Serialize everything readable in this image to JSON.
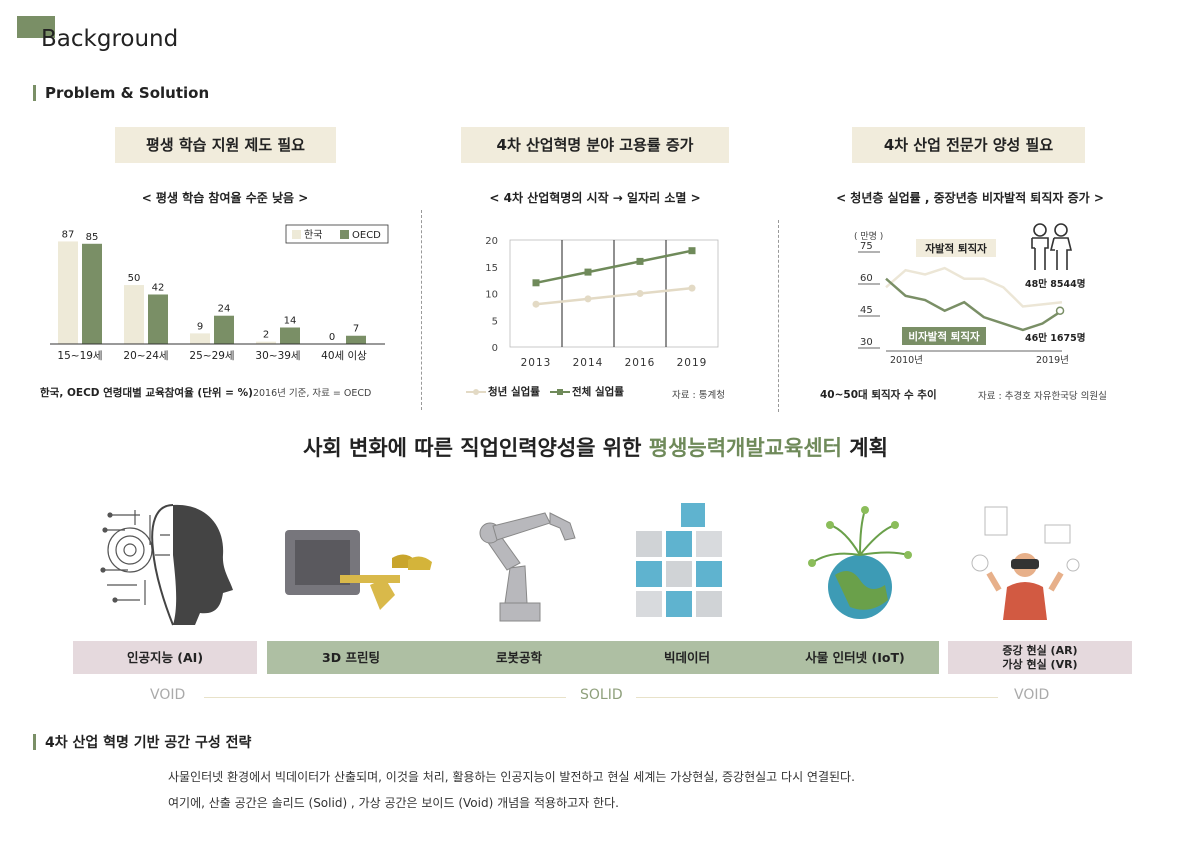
{
  "page_title": "Background",
  "section1_title": "Problem & Solution",
  "panels": [
    {
      "box_title": "평생 학습 지원 제도 필요",
      "subheading": "< 평생 학습 참여율 수준 낮음 >",
      "caption": "한국, OECD 연령대별 교육참여율 (단위 = %)",
      "caption_note": "2016년 기준,  자료 = OECD"
    },
    {
      "box_title": "4차 산업혁명 분야 고용률 증가",
      "subheading": "< 4차 산업혁명의 시작 → 일자리 소멸 >",
      "source": "자료 : 통계청"
    },
    {
      "box_title": "4차 산업 전문가 양성 필요",
      "subheading": "< 청년층 실업률 , 중장년층 비자발적 퇴직자 증가 >",
      "caption": "40~50대 퇴직자 수 추이",
      "source": "자료 : 추경호 자유한국당 의원실"
    }
  ],
  "chart_data": [
    {
      "type": "bar",
      "categories": [
        "15~19세",
        "20~24세",
        "25~29세",
        "30~39세",
        "40세 이상"
      ],
      "series": [
        {
          "name": "한국",
          "values": [
            87,
            50,
            9,
            2,
            0
          ],
          "color": "#eeead8"
        },
        {
          "name": "OECD",
          "values": [
            85,
            42,
            24,
            14,
            7
          ],
          "color": "#7a8f66"
        }
      ],
      "legend_placement": "top-right",
      "ylim": [
        0,
        95
      ]
    },
    {
      "type": "line",
      "x": [
        "2013",
        "2014",
        "2016",
        "2019"
      ],
      "series": [
        {
          "name": "청년 실업률",
          "values": [
            8,
            9,
            10,
            11
          ],
          "color": "#e3dac5"
        },
        {
          "name": "전체 실업률",
          "values": [
            12,
            14,
            16,
            18
          ],
          "color": "#6f8a5a"
        }
      ],
      "yticks": [
        0,
        5,
        10,
        15,
        20
      ],
      "ylim": [
        0,
        20
      ],
      "grid": true,
      "legend_placement": "bottom"
    },
    {
      "type": "line",
      "x_ticks": [
        "2010년",
        "2019년"
      ],
      "y_unit": "( 만명 )",
      "yticks": [
        30,
        45,
        60,
        75
      ],
      "ylim": [
        30,
        75
      ],
      "series": [
        {
          "name": "자발적 퇴직자",
          "values": [
            58,
            66,
            64,
            67,
            62,
            62,
            58,
            49,
            50,
            51
          ],
          "color": "#ece6d6"
        },
        {
          "name": "비자발적 퇴직자",
          "values": [
            62,
            54,
            52,
            47,
            51,
            44,
            41,
            38,
            41,
            47
          ],
          "color": "#7a8f66"
        }
      ],
      "annotations": [
        "48만 8544명",
        "46만 1675명"
      ]
    }
  ],
  "headline": {
    "prefix": "사회 변화에 따른 직업인력양성을 위한 ",
    "accent": "평생능력개발교육센터",
    "suffix": " 계획"
  },
  "tech_labels": {
    "ai": "인공지능 (AI)",
    "printing": "3D 프린팅",
    "robotics": "로봇공학",
    "bigdata": "빅데이터",
    "iot": "사물 인터넷 (IoT)",
    "ar": "증강 현실 (AR)",
    "vr": "가상 현실 (VR)"
  },
  "spectrum": {
    "left": "VOID",
    "center": "SOLID",
    "right": "VOID"
  },
  "section2_title": "4차 산업 혁명 기반 공간 구성 전략",
  "paragraph": [
    "사물인터넷 환경에서 빅데이터가 산출되며, 이것을 처리, 활용하는 인공지능이 발전하고 현실 세계는 가상현실, 증강현실고 다시 연결된다.",
    "여기에, 산출 공간은 솔리드 (Solid) , 가상 공간은 보이드 (Void) 개념을 적용하고자 한다."
  ],
  "colors": {
    "accent": "#7a8f66",
    "beige": "#f1ecdc",
    "void": "#e5d9dd",
    "solid": "#aebfa3"
  }
}
